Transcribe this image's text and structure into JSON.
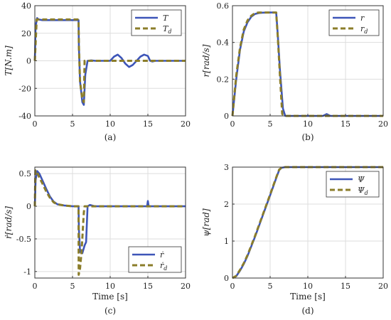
{
  "colors": {
    "actual": "#3d55b8",
    "desired": "#8b7d2a",
    "grid": "#dddddd",
    "axis": "#333333"
  },
  "chart_data": [
    {
      "type": "line",
      "caption": "(a)",
      "ylabel": "T[N.m]",
      "xlabel": "",
      "xlim": [
        0,
        20
      ],
      "ylim": [
        -40,
        40
      ],
      "xticks": [
        "0",
        "5",
        "10",
        "15",
        "20"
      ],
      "yticks": [
        "-40",
        "-20",
        "0",
        "20",
        "40"
      ],
      "grid": true,
      "legend_position": "top-right",
      "series": [
        {
          "name": "T",
          "style": "solid",
          "x": [
            0,
            0.1,
            0.3,
            0.5,
            1,
            2,
            3,
            4,
            5,
            5.8,
            5.85,
            6.0,
            6.3,
            6.5,
            6.7,
            7.0,
            7.5,
            8,
            9,
            10,
            10.5,
            11,
            11.5,
            12,
            12.5,
            13,
            13.5,
            14,
            14.5,
            15,
            15.3,
            15.6,
            16,
            17,
            18,
            19,
            20
          ],
          "y": [
            0,
            25,
            31,
            30,
            29.5,
            29.5,
            29.5,
            29.5,
            29.5,
            29.5,
            10,
            -15,
            -30,
            -32,
            -10,
            0,
            0.3,
            0,
            0,
            0,
            3,
            4.5,
            2,
            -2,
            -4.5,
            -3,
            0,
            3,
            4.5,
            3.5,
            0,
            -0.5,
            0,
            0,
            0,
            0,
            0
          ]
        },
        {
          "name": "Td",
          "style": "dashed",
          "x": [
            0,
            0.25,
            0.5,
            1,
            2,
            3,
            4,
            5,
            5.8,
            5.85,
            6.0,
            6.3,
            6.5,
            6.6,
            7,
            8,
            10,
            12,
            14,
            16,
            18,
            20
          ],
          "y": [
            0,
            30,
            30,
            30,
            30,
            30,
            30,
            30,
            30,
            10,
            -15,
            -28,
            -30,
            0,
            0,
            0,
            0,
            0,
            0,
            0,
            0,
            0
          ]
        }
      ]
    },
    {
      "type": "line",
      "caption": "(b)",
      "ylabel": "r[rad/s]",
      "xlabel": "",
      "xlim": [
        0,
        20
      ],
      "ylim": [
        0,
        0.6
      ],
      "xticks": [
        "0",
        "5",
        "10",
        "15",
        "20"
      ],
      "yticks": [
        "0",
        "0.2",
        "0.4",
        "0.6"
      ],
      "grid": true,
      "legend_position": "top-right",
      "series": [
        {
          "name": "r",
          "style": "solid",
          "x": [
            0,
            0.5,
            1,
            1.5,
            2,
            2.5,
            3,
            3.5,
            4,
            5,
            5.8,
            6.0,
            6.3,
            6.7,
            7,
            8,
            10,
            12,
            12.5,
            13,
            14,
            16,
            18,
            20
          ],
          "y": [
            0,
            0.2,
            0.36,
            0.46,
            0.51,
            0.54,
            0.555,
            0.56,
            0.562,
            0.563,
            0.563,
            0.45,
            0.25,
            0.04,
            0,
            0,
            0,
            0,
            0.01,
            0,
            0,
            0,
            0,
            0
          ]
        },
        {
          "name": "rd",
          "style": "dashed",
          "x": [
            0,
            0.5,
            1,
            1.5,
            2,
            2.5,
            3,
            3.5,
            4,
            5,
            5.8,
            6.0,
            6.3,
            6.6,
            7,
            10,
            15,
            20
          ],
          "y": [
            0,
            0.22,
            0.37,
            0.47,
            0.52,
            0.545,
            0.56,
            0.563,
            0.563,
            0.563,
            0.563,
            0.44,
            0.22,
            0.01,
            0,
            0,
            0,
            0
          ]
        }
      ]
    },
    {
      "type": "line",
      "caption": "(c)",
      "ylabel": "ṙ[rad/s]",
      "xlabel": "Time [s]",
      "xlim": [
        0,
        20
      ],
      "ylim": [
        -1.1,
        0.6
      ],
      "xticks": [
        "0",
        "5",
        "10",
        "15",
        "20"
      ],
      "yticks": [
        "-1",
        "-0.5",
        "0",
        "0.5"
      ],
      "grid": true,
      "legend_position": "bottom-right",
      "series": [
        {
          "name": "ṙ",
          "style": "solid",
          "x": [
            0,
            0.1,
            0.3,
            0.6,
            1,
            1.5,
            2,
            2.5,
            3,
            4,
            5,
            5.8,
            5.85,
            6.0,
            6.3,
            6.6,
            6.8,
            7.0,
            7.3,
            8,
            10,
            12,
            14,
            14.9,
            15,
            15.1,
            16,
            18,
            20
          ],
          "y": [
            0,
            0.4,
            0.54,
            0.5,
            0.4,
            0.27,
            0.15,
            0.07,
            0.03,
            0.01,
            0,
            0,
            -0.35,
            -0.7,
            -0.72,
            -0.6,
            -0.55,
            0,
            0.02,
            0,
            0,
            0,
            0,
            0,
            0.08,
            0,
            0,
            0,
            0
          ]
        },
        {
          "name": "ṙd",
          "style": "dashed",
          "x": [
            0,
            0.08,
            0.3,
            0.6,
            1,
            1.5,
            2,
            2.5,
            3,
            4,
            5,
            5.8,
            5.82,
            6.0,
            6.2,
            6.4,
            6.5,
            6.6,
            7,
            10,
            15,
            20
          ],
          "y": [
            0,
            0.55,
            0.52,
            0.44,
            0.35,
            0.23,
            0.13,
            0.06,
            0.03,
            0.01,
            0,
            0,
            -1.05,
            -0.95,
            -0.7,
            -0.3,
            -0.1,
            0,
            0,
            0,
            0,
            0
          ]
        }
      ]
    },
    {
      "type": "line",
      "caption": "(d)",
      "ylabel": "ψ[rad]",
      "xlabel": "Time [s]",
      "xlim": [
        0,
        20
      ],
      "ylim": [
        0,
        3
      ],
      "xticks": [
        "0",
        "5",
        "10",
        "15",
        "20"
      ],
      "yticks": [
        "0",
        "1",
        "2",
        "3"
      ],
      "grid": true,
      "legend_position": "top-right",
      "series": [
        {
          "name": "Ψ",
          "style": "solid",
          "x": [
            0,
            0.5,
            1,
            1.5,
            2,
            3,
            4,
            5,
            5.8,
            6.2,
            6.5,
            7,
            8,
            10,
            15,
            20
          ],
          "y": [
            0,
            0.05,
            0.2,
            0.38,
            0.6,
            1.12,
            1.68,
            2.24,
            2.7,
            2.92,
            2.98,
            3,
            3,
            3,
            3,
            3
          ]
        },
        {
          "name": "Ψd",
          "style": "dashed",
          "x": [
            0,
            0.5,
            1,
            1.5,
            2,
            3,
            4,
            5,
            5.8,
            6.2,
            6.5,
            7,
            8,
            10,
            15,
            20
          ],
          "y": [
            0,
            0.06,
            0.22,
            0.4,
            0.62,
            1.14,
            1.7,
            2.26,
            2.72,
            2.93,
            2.98,
            3,
            3,
            3,
            3,
            3
          ]
        }
      ]
    }
  ]
}
